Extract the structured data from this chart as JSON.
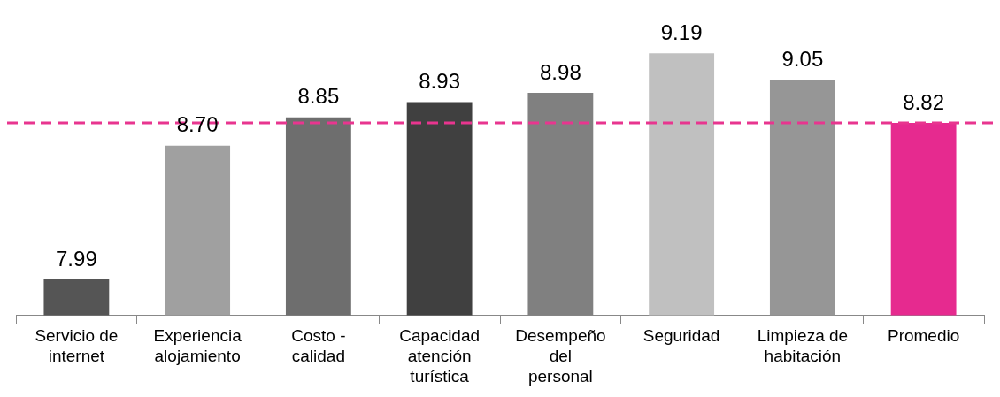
{
  "chart_data": {
    "type": "bar",
    "categories": [
      "Servicio de internet",
      "Experiencia alojamiento",
      "Costo - calidad",
      "Capacidad atención turística",
      "Desempeño del personal",
      "Seguridad",
      "Limpieza de habitación",
      "Promedio"
    ],
    "values": [
      7.99,
      8.7,
      8.85,
      8.93,
      8.98,
      9.19,
      9.05,
      8.82
    ],
    "colors": [
      "#555555",
      "#a0a0a0",
      "#6e6e6e",
      "#404040",
      "#808080",
      "#c0c0c0",
      "#969696",
      "#e62a8f"
    ],
    "value_labels": [
      "7.99",
      "8.70",
      "8.85",
      "8.93",
      "8.98",
      "9.19",
      "9.05",
      "8.82"
    ],
    "legend": false,
    "tick_labels": "x",
    "ref_lines": [
      {
        "axis": "y",
        "value": 8.82,
        "color": "#e8358f",
        "line_style": "dashed"
      }
    ]
  }
}
